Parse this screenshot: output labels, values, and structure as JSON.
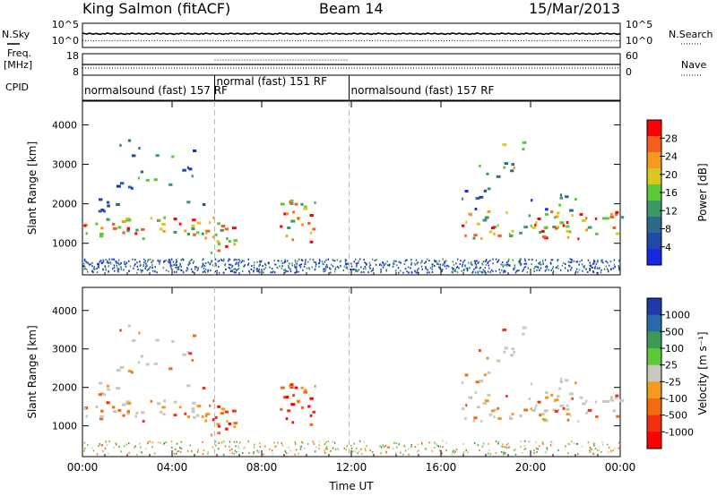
{
  "header": {
    "station": "King Salmon (fitACF)",
    "beam": "Beam 14",
    "date": "15/Mar/2013"
  },
  "panels": {
    "nsky": {
      "left_label": "N.Sky",
      "right_label": "N.Search",
      "ticks_left": [
        "10^5",
        "10^0"
      ],
      "ticks_right": [
        "10^5",
        "10^0"
      ]
    },
    "freq": {
      "left_label_line1": "Freq.",
      "left_label_line2": "[MHz]",
      "right_label": "Nave",
      "ticks_left": [
        "18",
        "8"
      ],
      "ticks_right": [
        "60",
        "0"
      ]
    },
    "cpid": {
      "label": "CPID",
      "segments": [
        {
          "text": "normalsound (fast) 157 RF",
          "start_hour": 0.0
        },
        {
          "text": "normal (fast) 151 RF",
          "start_hour": 5.9
        },
        {
          "text": "normalsound (fast) 157 RF",
          "start_hour": 11.9
        }
      ]
    }
  },
  "chart_data": [
    {
      "type": "heatmap",
      "name": "Power",
      "colorbar_label": "Power [dB]",
      "colorbar_ticks": [
        "28",
        "24",
        "20",
        "16",
        "12",
        "8",
        "4"
      ],
      "colorbar_colors": [
        "#ff0000",
        "#f4601c",
        "#f49a20",
        "#d8c81e",
        "#5cc83a",
        "#3a9a66",
        "#2a6a8a",
        "#1e4aa8",
        "#1628e0"
      ],
      "ylabel": "Slant Range [km]",
      "yticks": [
        "4000",
        "3000",
        "2000",
        "1000"
      ],
      "ylim": [
        200,
        4600
      ],
      "xlim": [
        0,
        24
      ],
      "features": [
        {
          "t0": 0.0,
          "t1": 6.2,
          "r0": 1100,
          "r1": 1650,
          "level": "high"
        },
        {
          "t0": 0.5,
          "t1": 5.5,
          "r0": 1700,
          "r1": 2100,
          "level": "low"
        },
        {
          "t0": 1.5,
          "t1": 5.0,
          "r0": 2300,
          "r1": 3600,
          "level": "low"
        },
        {
          "t0": 5.3,
          "t1": 6.8,
          "r0": 700,
          "r1": 1400,
          "level": "high"
        },
        {
          "t0": 8.8,
          "t1": 10.4,
          "r0": 1000,
          "r1": 2100,
          "level": "high"
        },
        {
          "t0": 16.9,
          "t1": 24.0,
          "r0": 1100,
          "r1": 1800,
          "level": "high"
        },
        {
          "t0": 16.9,
          "t1": 22.5,
          "r0": 1800,
          "r1": 2400,
          "level": "low"
        },
        {
          "t0": 17.5,
          "t1": 19.7,
          "r0": 2500,
          "r1": 3600,
          "level": "mid"
        }
      ]
    },
    {
      "type": "heatmap",
      "name": "Velocity",
      "colorbar_label": "Velocity [m s⁻¹]",
      "colorbar_ticks": [
        "1000",
        "500",
        "100",
        "25",
        "-25",
        "-100",
        "-500",
        "-1000"
      ],
      "colorbar_colors": [
        "#1e3aa8",
        "#2a6aa8",
        "#3a9a56",
        "#5cc83a",
        "#c8c8c0",
        "#f49a20",
        "#f46a10",
        "#f43010",
        "#ff0000"
      ],
      "ylabel": "Slant Range [km]",
      "yticks": [
        "4000",
        "3000",
        "2000",
        "1000"
      ],
      "ylim": [
        200,
        4600
      ],
      "xlim": [
        0,
        24
      ],
      "xticks": [
        "00:00",
        "04:00",
        "08:00",
        "12:00",
        "16:00",
        "20:00",
        "00:00"
      ],
      "xlabel": "Time UT"
    }
  ],
  "colors": {
    "axis": "#000000",
    "divider": "#bbbbbb"
  }
}
